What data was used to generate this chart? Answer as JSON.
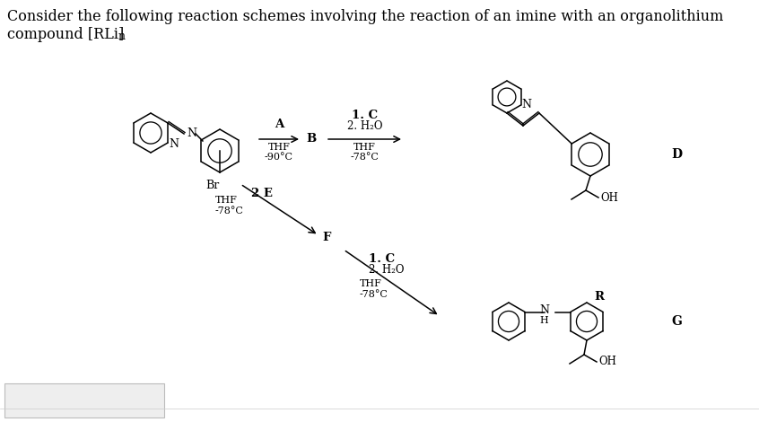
{
  "title_line1": "Consider the following reaction schemes involving the reaction of an imine with an organolithium",
  "title_line2_pre": "compound [RLi]",
  "title_line2_sub": "n",
  "title_fontsize": 11.5,
  "bg_color": "#ffffff",
  "text_color": "#000000",
  "label_A": "A",
  "label_B": "B",
  "label_D": "D",
  "label_E": "2 E",
  "label_F": "F",
  "label_G": "G",
  "label_R": "R",
  "label_OH_D": "OH",
  "label_OH_G": "OH",
  "label_Br": "Br",
  "label_N": "N",
  "label_N_H": "N",
  "label_H": "H",
  "cond_A_top": "A",
  "cond_A_bot1": "THF",
  "cond_A_bot2": "-90°C",
  "cond_B_top1": "1. C",
  "cond_B_top2": "2. H₂O",
  "cond_B_bot1": "THF",
  "cond_B_bot2": "-78°C",
  "cond_E_top": "2 E",
  "cond_E_bot1": "THF",
  "cond_E_bot2": "-78°C",
  "cond_F_top1": "1. C",
  "cond_F_top2": "2. H₂O",
  "cond_F_bot1": "THF",
  "cond_F_bot2": "-78°C"
}
